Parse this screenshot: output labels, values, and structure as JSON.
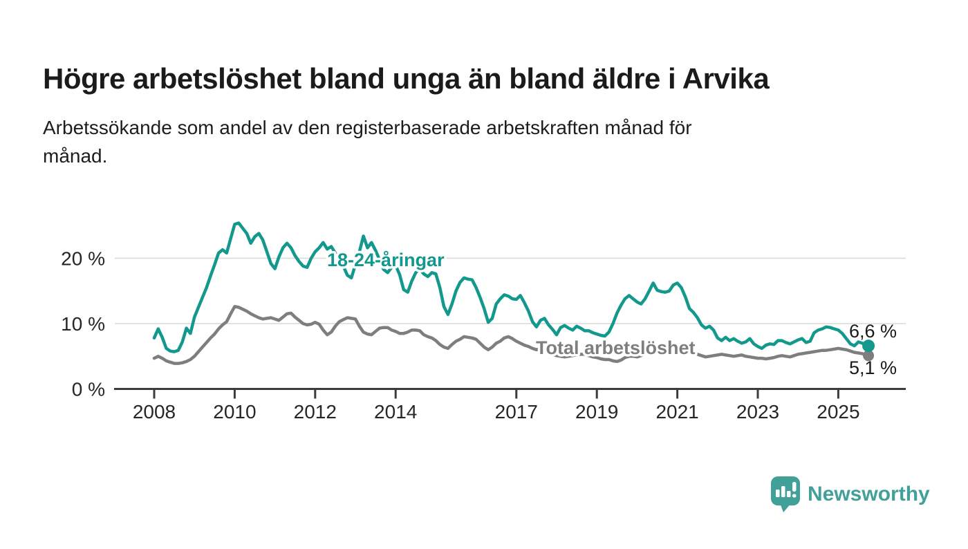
{
  "header": {
    "title": "Högre arbetslöshet bland unga än bland äldre i Arvika",
    "subtitle_lines": [
      "Arbetssökande som andel av den registerbaserade arbetskraften månad för",
      "månad."
    ]
  },
  "chart_data": {
    "type": "line",
    "unit": "%",
    "grid": "horizontal",
    "legend_position": "inline-labels",
    "xlim": [
      2007.0,
      2026.7
    ],
    "ylim": [
      0,
      28
    ],
    "x_ticks": {
      "values": [
        2008,
        2010,
        2012,
        2014,
        2017,
        2019,
        2021,
        2023,
        2025
      ],
      "labels": [
        "2008",
        "2010",
        "2012",
        "2014",
        "2017",
        "2019",
        "2021",
        "2023",
        "2025"
      ]
    },
    "y_ticks": {
      "values": [
        0,
        10,
        20
      ],
      "labels": [
        "0 %",
        "10 %",
        "20 %"
      ]
    },
    "x_start": 2008.0,
    "x_step": 0.1,
    "x_end": 2025.75,
    "series": [
      {
        "name": "18-24-åringar",
        "color": "#12988c",
        "end_label": "6,6 %",
        "end_value": 6.6,
        "values": [
          7.8,
          9.2,
          7.9,
          6.2,
          5.8,
          5.7,
          5.9,
          7.2,
          9.3,
          8.5,
          11.0,
          12.5,
          14.0,
          15.5,
          17.3,
          19.0,
          20.8,
          21.3,
          20.8,
          23.0,
          25.2,
          25.4,
          24.6,
          23.8,
          22.3,
          23.3,
          23.8,
          22.8,
          21.0,
          19.2,
          18.4,
          20.2,
          21.6,
          22.3,
          21.6,
          20.4,
          19.5,
          18.8,
          18.6,
          20.0,
          21.0,
          21.6,
          22.4,
          21.4,
          21.8,
          20.8,
          19.6,
          18.8,
          17.4,
          17.0,
          19.0,
          21.0,
          23.4,
          21.6,
          22.4,
          21.2,
          19.8,
          18.3,
          17.8,
          18.6,
          18.9,
          17.5,
          15.2,
          14.8,
          16.5,
          17.8,
          18.4,
          17.6,
          17.2,
          17.8,
          17.6,
          15.5,
          12.6,
          11.4,
          13.0,
          15.0,
          16.3,
          17.0,
          16.8,
          16.7,
          15.5,
          14.0,
          12.3,
          10.2,
          10.8,
          13.0,
          13.8,
          14.4,
          14.2,
          13.8,
          13.7,
          14.3,
          13.2,
          11.9,
          10.3,
          9.5,
          10.5,
          10.8,
          9.8,
          9.1,
          8.3,
          9.4,
          9.7,
          9.3,
          9.0,
          9.6,
          9.3,
          8.9,
          8.9,
          8.6,
          8.4,
          8.2,
          8.1,
          8.7,
          10.0,
          11.6,
          12.8,
          13.8,
          14.3,
          13.8,
          13.3,
          13.0,
          13.8,
          15.0,
          16.2,
          15.1,
          14.9,
          14.8,
          15.0,
          15.9,
          16.2,
          15.5,
          14.1,
          12.3,
          11.7,
          10.9,
          9.8,
          9.3,
          9.6,
          9.0,
          7.8,
          7.4,
          7.9,
          7.4,
          7.7,
          7.3,
          7.0,
          7.2,
          7.7,
          6.9,
          6.5,
          6.2,
          6.7,
          6.9,
          6.8,
          7.4,
          7.4,
          7.1,
          6.9,
          7.2,
          7.5,
          7.7,
          7.1,
          7.3,
          8.6,
          9.0,
          9.2,
          9.5,
          9.4,
          9.2,
          9.0,
          8.5,
          7.7,
          6.9,
          6.6,
          7.2,
          7.0,
          6.5,
          6.6
        ]
      },
      {
        "name": "Total arbetslöshet",
        "color": "#7e7e7e",
        "end_label": "5,1 %",
        "end_value": 5.1,
        "values": [
          4.7,
          5.0,
          4.7,
          4.3,
          4.1,
          3.9,
          3.9,
          4.0,
          4.2,
          4.5,
          5.0,
          5.7,
          6.4,
          7.1,
          7.8,
          8.4,
          9.2,
          9.8,
          10.3,
          11.5,
          12.6,
          12.5,
          12.2,
          11.9,
          11.5,
          11.2,
          10.9,
          10.7,
          10.8,
          10.9,
          10.7,
          10.5,
          11.0,
          11.5,
          11.6,
          11.0,
          10.5,
          10.0,
          9.8,
          9.9,
          10.2,
          9.9,
          9.0,
          8.3,
          8.7,
          9.6,
          10.3,
          10.6,
          10.9,
          10.8,
          10.7,
          9.6,
          8.7,
          8.4,
          8.3,
          8.8,
          9.3,
          9.4,
          9.4,
          9.0,
          8.8,
          8.5,
          8.5,
          8.7,
          9.0,
          9.0,
          8.9,
          8.3,
          8.0,
          7.8,
          7.4,
          6.8,
          6.4,
          6.2,
          6.8,
          7.3,
          7.6,
          8.0,
          7.9,
          7.8,
          7.6,
          7.0,
          6.4,
          6.0,
          6.4,
          7.0,
          7.3,
          7.8,
          8.0,
          7.7,
          7.3,
          7.0,
          6.7,
          6.5,
          6.2,
          6.0,
          6.2,
          6.0,
          5.5,
          5.3,
          5.1,
          5.0,
          4.9,
          5.0,
          5.1,
          5.2,
          5.3,
          5.3,
          5.1,
          4.9,
          4.8,
          4.6,
          4.5,
          4.5,
          4.3,
          4.2,
          4.4,
          4.8,
          5.0,
          5.0,
          4.9,
          5.1,
          5.4,
          5.7,
          5.9,
          5.9,
          6.0,
          6.1,
          6.2,
          6.2,
          6.1,
          6.0,
          5.8,
          5.6,
          5.4,
          5.3,
          5.1,
          4.9,
          5.0,
          5.1,
          5.2,
          5.3,
          5.2,
          5.1,
          5.0,
          5.1,
          5.2,
          5.0,
          4.9,
          4.8,
          4.7,
          4.7,
          4.6,
          4.7,
          4.8,
          5.0,
          5.1,
          5.0,
          4.9,
          5.1,
          5.3,
          5.4,
          5.5,
          5.6,
          5.7,
          5.8,
          5.9,
          5.9,
          6.0,
          6.1,
          6.2,
          6.1,
          6.0,
          5.8,
          5.6,
          5.5,
          5.4,
          5.2,
          5.1
        ]
      }
    ]
  },
  "branding": {
    "name": "Newsworthy",
    "color": "#41a098",
    "icon": "bar-chart-speech-bubble"
  }
}
